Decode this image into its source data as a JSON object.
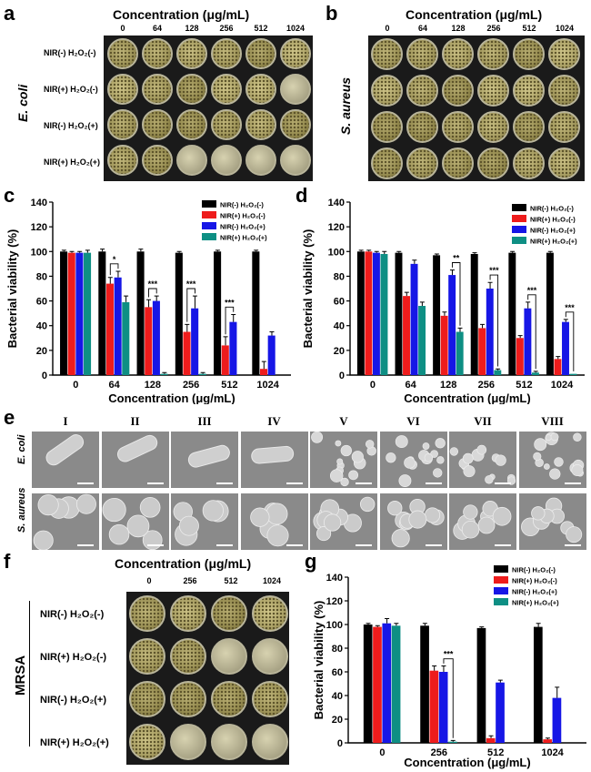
{
  "panels": {
    "a": {
      "label": "a",
      "header": "Concentration (μg/mL)",
      "concentrations": [
        "0",
        "64",
        "128",
        "256",
        "512",
        "1024"
      ],
      "species": "E. coli",
      "rows": [
        "NIR(-) H₂O₂(-)",
        "NIR(+) H₂O₂(-)",
        "NIR(-) H₂O₂(+)",
        "NIR(+) H₂O₂(+)"
      ]
    },
    "b": {
      "label": "b",
      "header": "Concentration (μg/mL)",
      "concentrations": [
        "0",
        "64",
        "128",
        "256",
        "512",
        "1024"
      ],
      "species": "S. aureus"
    },
    "c": {
      "label": "c"
    },
    "d": {
      "label": "d"
    },
    "e": {
      "label": "e",
      "columns": [
        "I",
        "II",
        "III",
        "IV",
        "V",
        "VI",
        "VII",
        "VIII"
      ],
      "rows": [
        "E. coli",
        "S. aureus"
      ]
    },
    "f": {
      "label": "f",
      "header": "Concentration (μg/mL)",
      "concentrations": [
        "0",
        "256",
        "512",
        "1024"
      ],
      "species": "MRSA",
      "rows": [
        "NIR(-) H₂O₂(-)",
        "NIR(+) H₂O₂(-)",
        "NIR(-) H₂O₂(+)",
        "NIR(+) H₂O₂(+)"
      ]
    },
    "g": {
      "label": "g"
    }
  },
  "colors": {
    "black": "#000000",
    "red": "#ee1c1c",
    "blue": "#1616e6",
    "teal": "#0e8f84"
  },
  "chart_data": [
    {
      "id": "c",
      "type": "bar",
      "categories": [
        "0",
        "64",
        "128",
        "256",
        "512",
        "1024"
      ],
      "xlabel": "Concentration (μg/mL)",
      "ylabel": "Bacterial viability (%)",
      "ylim": [
        0,
        140
      ],
      "yticks": [
        "0",
        "20",
        "40",
        "60",
        "80",
        "100",
        "120",
        "140"
      ],
      "legend": "top-right",
      "series": [
        {
          "name": "NIR(-) H₂O₂(-)",
          "values": [
            100,
            100,
            100,
            99,
            100,
            100
          ],
          "errors": [
            1,
            2,
            2,
            1,
            1,
            1
          ]
        },
        {
          "name": "NIR(+) H₂O₂(-)",
          "values": [
            99,
            74,
            55,
            35,
            24,
            5
          ],
          "errors": [
            1,
            5,
            6,
            6,
            7,
            6
          ]
        },
        {
          "name": "NIR(-) H₂O₂(+)",
          "values": [
            99,
            79,
            60,
            54,
            43,
            32
          ],
          "errors": [
            1,
            5,
            4,
            10,
            6,
            3
          ]
        },
        {
          "name": "NIR(+) H₂O₂(+)",
          "values": [
            99,
            59,
            1,
            1,
            0,
            0
          ],
          "errors": [
            2,
            5,
            1,
            1,
            0,
            0
          ]
        }
      ],
      "annotations": [
        {
          "text": "*"
        },
        {
          "text": "***"
        },
        {
          "text": "***"
        },
        {
          "text": "***"
        }
      ]
    },
    {
      "id": "d",
      "type": "bar",
      "categories": [
        "0",
        "64",
        "128",
        "256",
        "512",
        "1024"
      ],
      "xlabel": "Concentration (μg/mL)",
      "ylabel": "Bacterial viability (%)",
      "ylim": [
        0,
        140
      ],
      "yticks": [
        "0",
        "20",
        "40",
        "60",
        "80",
        "100",
        "120",
        "140"
      ],
      "legend": "top-right",
      "series": [
        {
          "name": "NIR(-) H₂O₂(-)",
          "values": [
            100,
            99,
            97,
            98,
            99,
            99
          ],
          "errors": [
            1,
            1,
            1,
            1,
            1,
            1
          ]
        },
        {
          "name": "NIR(+) H₂O₂(-)",
          "values": [
            100,
            64,
            48,
            38,
            30,
            13
          ],
          "errors": [
            1,
            3,
            3,
            3,
            2,
            2
          ]
        },
        {
          "name": "NIR(-) H₂O₂(+)",
          "values": [
            99,
            90,
            81,
            70,
            54,
            43
          ],
          "errors": [
            1,
            3,
            4,
            5,
            5,
            2
          ]
        },
        {
          "name": "NIR(+) H₂O₂(+)",
          "values": [
            98,
            56,
            35,
            4,
            2,
            1
          ],
          "errors": [
            2,
            3,
            3,
            1,
            1,
            0
          ]
        }
      ],
      "annotations": [
        {
          "text": "**"
        },
        {
          "text": "***"
        },
        {
          "text": "***"
        },
        {
          "text": "***"
        }
      ]
    },
    {
      "id": "g",
      "type": "bar",
      "categories": [
        "0",
        "256",
        "512",
        "1024"
      ],
      "xlabel": "Concentration (μg/mL)",
      "ylabel": "Bacterial viability (%)",
      "ylim": [
        0,
        140
      ],
      "yticks": [
        "0",
        "20",
        "40",
        "60",
        "80",
        "100",
        "120",
        "140"
      ],
      "legend": "top-right",
      "series": [
        {
          "name": "NIR(-) H₂O₂(-)",
          "values": [
            100,
            99,
            97,
            98
          ],
          "errors": [
            1,
            2,
            1,
            3
          ]
        },
        {
          "name": "NIR(+) H₂O₂(-)",
          "values": [
            98,
            61,
            4,
            3
          ],
          "errors": [
            1,
            4,
            2,
            1
          ]
        },
        {
          "name": "NIR(-) H₂O₂(+)",
          "values": [
            101,
            60,
            51,
            38
          ],
          "errors": [
            4,
            5,
            2,
            9
          ]
        },
        {
          "name": "NIR(+) H₂O₂(+)",
          "values": [
            99,
            1,
            0,
            0
          ],
          "errors": [
            2,
            1,
            0,
            0
          ]
        }
      ],
      "annotations": [
        {
          "text": "***"
        }
      ]
    }
  ]
}
